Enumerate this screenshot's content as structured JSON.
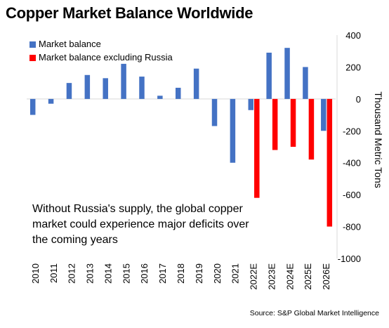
{
  "chart_data": {
    "type": "bar",
    "title": "Copper Market Balance Worldwide",
    "xlabel": "",
    "ylabel": "Thousand Metric Tons",
    "ylim": [
      -1000,
      400
    ],
    "yticks": [
      400,
      200,
      0,
      -200,
      -400,
      -600,
      -800,
      -1000
    ],
    "categories": [
      "2010",
      "2011",
      "2012",
      "2013",
      "2014",
      "2015",
      "2016",
      "2017",
      "2018",
      "2019",
      "2020",
      "2021",
      "2022E",
      "2023E",
      "2024E",
      "2025E",
      "2026E"
    ],
    "series": [
      {
        "name": "Market balance",
        "color": "#4472c4",
        "values": [
          -100,
          -30,
          100,
          150,
          130,
          220,
          140,
          20,
          70,
          190,
          -170,
          -400,
          -70,
          290,
          320,
          200,
          -200
        ]
      },
      {
        "name": "Market balance excluding Russia",
        "color": "#ff0000",
        "values": [
          null,
          null,
          null,
          null,
          null,
          null,
          null,
          null,
          null,
          null,
          null,
          null,
          -620,
          -320,
          -300,
          -380,
          -800
        ]
      }
    ],
    "legend_position": "top-left",
    "grid": false,
    "annotation": "Without Russia's supply, the global copper market could experience major deficits over the coming years",
    "source": "Source: S&P Global Market Intelligence"
  }
}
